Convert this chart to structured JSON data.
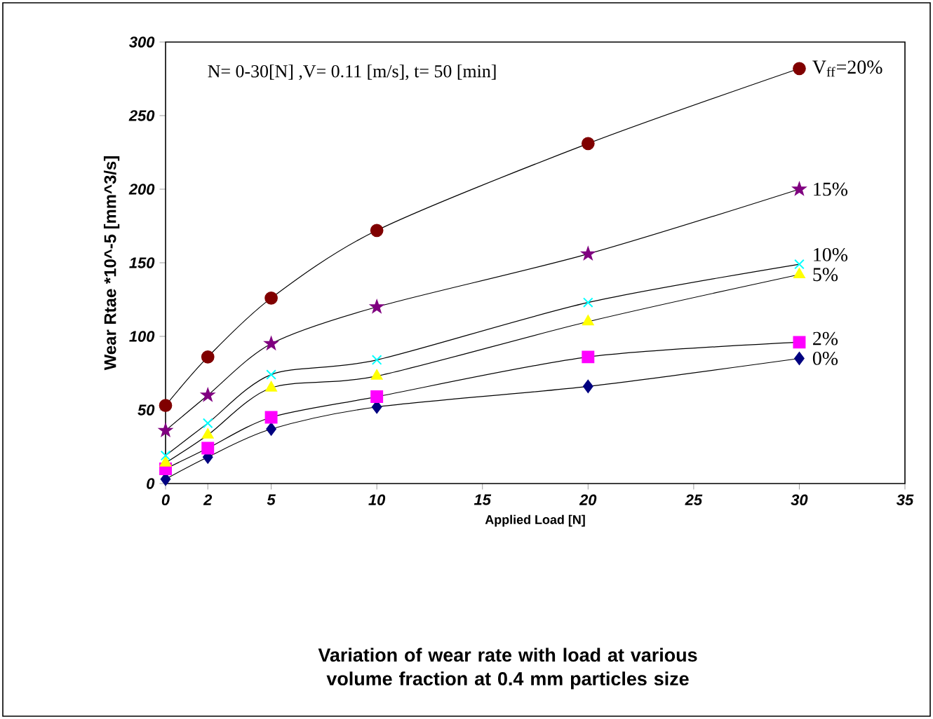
{
  "chart_data": {
    "type": "line",
    "title": "Variation of wear rate with load at various volume fraction at 0.4 mm particles size",
    "xlabel": "Applied Load [N]",
    "ylabel": "Wear Rtae *10^-5 [mm^3/s]",
    "annotations": [
      "N= 0-30[N] ,V= 0.11 [m/s], t= 50 [min]"
    ],
    "x": [
      0,
      2,
      5,
      10,
      20,
      30
    ],
    "xlim": [
      0,
      35
    ],
    "xticks": [
      0,
      2,
      5,
      10,
      15,
      20,
      25,
      30,
      35
    ],
    "ylim": [
      0,
      300
    ],
    "yticks": [
      0,
      50,
      100,
      150,
      200,
      250,
      300
    ],
    "grid": false,
    "legend": false,
    "line_style": "solid",
    "series": [
      {
        "name": "V$_{ff}$=20%",
        "color": "#800000",
        "marker": "circle",
        "values": [
          53,
          86,
          126,
          172,
          231,
          282
        ]
      },
      {
        "name": "15%",
        "color": "#800080",
        "marker": "star",
        "values": [
          36,
          60,
          95,
          120,
          156,
          200
        ]
      },
      {
        "name": "10%",
        "color": "#00ffff",
        "marker": "cross",
        "values": [
          19,
          41,
          74,
          84,
          123,
          149
        ]
      },
      {
        "name": "5%",
        "color": "#ffff00",
        "marker": "triangle",
        "values": [
          14,
          33,
          65,
          73,
          110,
          142
        ]
      },
      {
        "name": "2%",
        "color": "#ff00ff",
        "marker": "square",
        "values": [
          10,
          24,
          45,
          59,
          86,
          96
        ]
      },
      {
        "name": "0%",
        "color": "#000080",
        "marker": "diamond",
        "values": [
          3,
          18,
          37,
          52,
          66,
          85
        ]
      }
    ]
  }
}
